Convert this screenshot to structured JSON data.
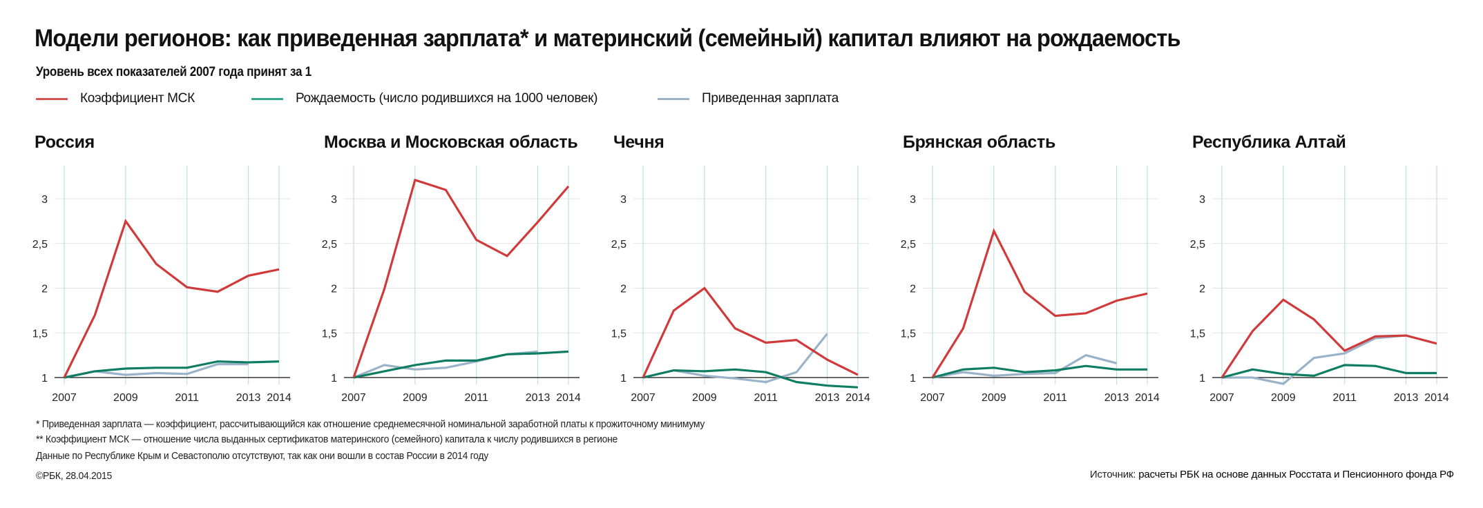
{
  "header": {
    "title": "Модели регионов: как приведенная зарплата* и материнский (семейный) капитал влияют на рождаемость",
    "subtitle": "Уровень всех показателей 2007 года принят за 1"
  },
  "legend": [
    {
      "key": "msk",
      "label": "Коэффициент МСК",
      "color": "#d9534f"
    },
    {
      "key": "birth",
      "label": "Рождаемость (число родившихся на 1000 человек)",
      "color": "#1a8a6e"
    },
    {
      "key": "salary",
      "label": "Приведенная зарплата",
      "color": "#9bb3c8"
    }
  ],
  "chart_data": [
    {
      "type": "line",
      "title": "Россия",
      "x": [
        2007,
        2008,
        2009,
        2010,
        2011,
        2012,
        2013,
        2014
      ],
      "xticks": [
        "2007",
        "2009",
        "2011",
        "2013",
        "2014"
      ],
      "yticks": [
        "1",
        "1,5",
        "2",
        "2,5",
        "3"
      ],
      "ylim": [
        1,
        3.3
      ],
      "grid": true,
      "series": [
        {
          "name": "Коэффициент МСК",
          "key": "msk",
          "values": [
            1,
            1.7,
            2.75,
            2.27,
            2.01,
            1.96,
            2.14,
            2.21
          ]
        },
        {
          "name": "Приведенная зарплата",
          "key": "salary",
          "values": [
            1,
            1.07,
            1.03,
            1.05,
            1.04,
            1.15,
            1.15,
            null
          ]
        },
        {
          "name": "Рождаемость (число родившихся на 1000 человек)",
          "key": "birth",
          "values": [
            1,
            1.07,
            1.1,
            1.11,
            1.11,
            1.18,
            1.17,
            1.18
          ]
        }
      ]
    },
    {
      "type": "line",
      "title": "Москва и Московская область",
      "x": [
        2007,
        2008,
        2009,
        2010,
        2011,
        2012,
        2013,
        2014
      ],
      "xticks": [
        "2007",
        "2009",
        "2011",
        "2013",
        "2014"
      ],
      "yticks": [
        "1",
        "1,5",
        "2",
        "2,5",
        "3"
      ],
      "ylim": [
        1,
        3.3
      ],
      "grid": true,
      "series": [
        {
          "name": "Коэффициент МСК",
          "key": "msk",
          "values": [
            1,
            1.99,
            3.21,
            3.1,
            2.54,
            2.36,
            2.74,
            3.14
          ]
        },
        {
          "name": "Приведенная зарплата",
          "key": "salary",
          "values": [
            1,
            1.14,
            1.09,
            1.11,
            1.18,
            1.26,
            1.29,
            null
          ]
        },
        {
          "name": "Рождаемость (число родившихся на 1000 человек)",
          "key": "birth",
          "values": [
            1,
            1.07,
            1.14,
            1.19,
            1.19,
            1.26,
            1.27,
            1.29
          ]
        }
      ]
    },
    {
      "type": "line",
      "title": "Чечня",
      "x": [
        2007,
        2008,
        2009,
        2010,
        2011,
        2012,
        2013,
        2014
      ],
      "xticks": [
        "2007",
        "2009",
        "2011",
        "2013",
        "2014"
      ],
      "yticks": [
        "1",
        "1,5",
        "2",
        "2,5",
        "3"
      ],
      "ylim": [
        1,
        3.3
      ],
      "grid": true,
      "series": [
        {
          "name": "Коэффициент МСК",
          "key": "msk",
          "values": [
            1,
            1.75,
            2.0,
            1.55,
            1.39,
            1.42,
            1.2,
            1.03
          ]
        },
        {
          "name": "Приведенная зарплата",
          "key": "salary",
          "values": [
            1,
            1.08,
            1.02,
            0.99,
            0.95,
            1.06,
            1.49,
            null
          ]
        },
        {
          "name": "Рождаемость (число родившихся на 1000 человек)",
          "key": "birth",
          "values": [
            1,
            1.08,
            1.07,
            1.09,
            1.06,
            0.95,
            0.91,
            0.89
          ]
        }
      ]
    },
    {
      "type": "line",
      "title": "Брянская область",
      "x": [
        2007,
        2008,
        2009,
        2010,
        2011,
        2012,
        2013,
        2014
      ],
      "xticks": [
        "2007",
        "2009",
        "2011",
        "2013",
        "2014"
      ],
      "yticks": [
        "1",
        "1,5",
        "2",
        "2,5",
        "3"
      ],
      "ylim": [
        1,
        3.3
      ],
      "grid": true,
      "series": [
        {
          "name": "Коэффициент МСК",
          "key": "msk",
          "values": [
            1,
            1.55,
            2.64,
            1.96,
            1.69,
            1.72,
            1.86,
            1.94
          ]
        },
        {
          "name": "Приведенная зарплата",
          "key": "salary",
          "values": [
            1,
            1.06,
            1.02,
            1.04,
            1.05,
            1.25,
            1.16,
            null
          ]
        },
        {
          "name": "Рождаемость (число родившихся на 1000 человек)",
          "key": "birth",
          "values": [
            1,
            1.09,
            1.11,
            1.06,
            1.08,
            1.13,
            1.09,
            1.09
          ]
        }
      ]
    },
    {
      "type": "line",
      "title": "Республика Алтай",
      "x": [
        2007,
        2008,
        2009,
        2010,
        2011,
        2012,
        2013,
        2014
      ],
      "xticks": [
        "2007",
        "2009",
        "2011",
        "2013",
        "2014"
      ],
      "yticks": [
        "1",
        "1,5",
        "2",
        "2,5",
        "3"
      ],
      "ylim": [
        1,
        3.3
      ],
      "grid": true,
      "series": [
        {
          "name": "Коэффициент МСК",
          "key": "msk",
          "values": [
            1,
            1.52,
            1.87,
            1.65,
            1.3,
            1.46,
            1.47,
            1.38
          ]
        },
        {
          "name": "Приведенная зарплата",
          "key": "salary",
          "values": [
            1,
            1.0,
            0.93,
            1.22,
            1.27,
            1.44,
            1.47,
            null
          ]
        },
        {
          "name": "Рождаемость (число родившихся на 1000 человек)",
          "key": "birth",
          "values": [
            1,
            1.09,
            1.04,
            1.02,
            1.14,
            1.13,
            1.05,
            1.05
          ]
        }
      ]
    }
  ],
  "footnotes": {
    "note1": "* Приведенная зарплата — коэффициент, рассчитывающийся как отношение среднемесячной номинальной заработной платы к прожиточному минимуму",
    "note2": "** Коэффициент МСК — отношение числа выданных сертификатов материнского (семейного) капитала к числу родившихся в регионе",
    "note3": "Данные по Республике Крым и Севастополю отсутствуют, так как они вошли в состав России в 2014 году",
    "copyright": "©РБК, 28.04.2015",
    "source_label": "Источник:",
    "source_text": "расчеты РБК на основе данных Росстата и Пенсионного фонда РФ"
  }
}
